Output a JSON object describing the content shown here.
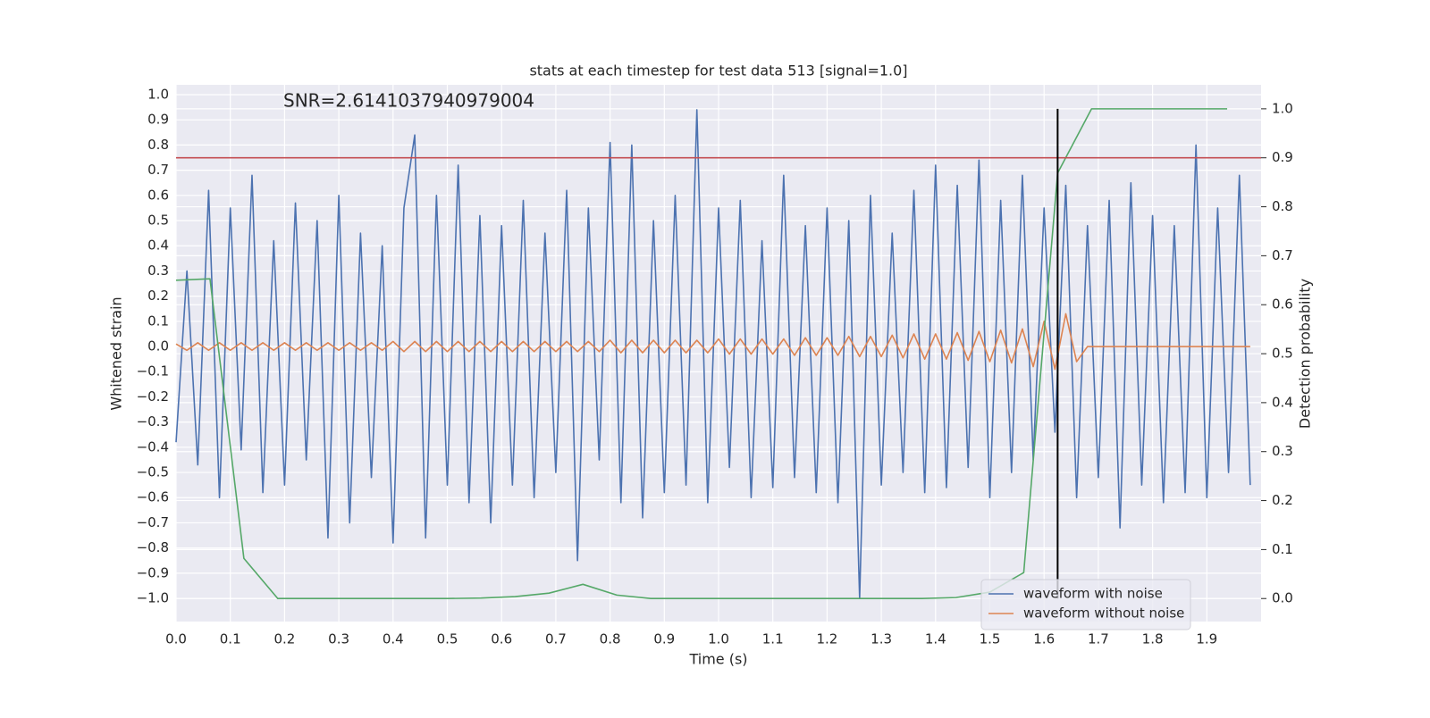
{
  "chart_data": {
    "type": "line",
    "title": "stats at each timestep for test data 513 [signal=1.0]",
    "annotation": "SNR=2.6141037940979004",
    "xlabel": "Time (s)",
    "ylabel": "Whitened strain",
    "y2label": "Detection probability",
    "xlim": [
      0,
      2.0
    ],
    "ylim": [
      -1.092,
      1.039
    ],
    "y2lim": [
      -0.047,
      1.049
    ],
    "grid": true,
    "legend": "lower right",
    "xticks": [
      {
        "value": 0,
        "label": "0.0"
      },
      {
        "value": 0.1,
        "label": "0.1"
      },
      {
        "value": 0.2,
        "label": "0.2"
      },
      {
        "value": 0.3,
        "label": "0.3"
      },
      {
        "value": 0.4,
        "label": "0.4"
      },
      {
        "value": 0.5,
        "label": "0.5"
      },
      {
        "value": 0.6,
        "label": "0.6"
      },
      {
        "value": 0.7,
        "label": "0.7"
      },
      {
        "value": 0.8,
        "label": "0.8"
      },
      {
        "value": 0.9,
        "label": "0.9"
      },
      {
        "value": 1,
        "label": "1.0"
      },
      {
        "value": 1.1,
        "label": "1.1"
      },
      {
        "value": 1.2,
        "label": "1.2"
      },
      {
        "value": 1.3,
        "label": "1.3"
      },
      {
        "value": 1.4,
        "label": "1.4"
      },
      {
        "value": 1.5,
        "label": "1.5"
      },
      {
        "value": 1.6,
        "label": "1.6"
      },
      {
        "value": 1.7,
        "label": "1.7"
      },
      {
        "value": 1.8,
        "label": "1.8"
      },
      {
        "value": 1.9,
        "label": "1.9"
      }
    ],
    "yticks": [
      {
        "value": -1,
        "label": "−1.0"
      },
      {
        "value": -0.9,
        "label": "−0.9"
      },
      {
        "value": -0.8,
        "label": "−0.8"
      },
      {
        "value": -0.7,
        "label": "−0.7"
      },
      {
        "value": -0.6,
        "label": "−0.6"
      },
      {
        "value": -0.5,
        "label": "−0.5"
      },
      {
        "value": -0.4,
        "label": "−0.4"
      },
      {
        "value": -0.3,
        "label": "−0.3"
      },
      {
        "value": -0.2,
        "label": "−0.2"
      },
      {
        "value": -0.1,
        "label": "−0.1"
      },
      {
        "value": 0,
        "label": "0.0"
      },
      {
        "value": 0.1,
        "label": "0.1"
      },
      {
        "value": 0.2,
        "label": "0.2"
      },
      {
        "value": 0.3,
        "label": "0.3"
      },
      {
        "value": 0.4,
        "label": "0.4"
      },
      {
        "value": 0.5,
        "label": "0.5"
      },
      {
        "value": 0.6,
        "label": "0.6"
      },
      {
        "value": 0.7,
        "label": "0.7"
      },
      {
        "value": 0.8,
        "label": "0.8"
      },
      {
        "value": 0.9,
        "label": "0.9"
      },
      {
        "value": 1,
        "label": "1.0"
      }
    ],
    "y2ticks": [
      {
        "value": 0,
        "label": "0.0"
      },
      {
        "value": 0.1,
        "label": "0.1"
      },
      {
        "value": 0.2,
        "label": "0.2"
      },
      {
        "value": 0.3,
        "label": "0.3"
      },
      {
        "value": 0.4,
        "label": "0.4"
      },
      {
        "value": 0.5,
        "label": "0.5"
      },
      {
        "value": 0.6,
        "label": "0.6"
      },
      {
        "value": 0.7,
        "label": "0.7"
      },
      {
        "value": 0.8,
        "label": "0.8"
      },
      {
        "value": 0.9,
        "label": "0.9"
      },
      {
        "value": 1,
        "label": "1.0"
      }
    ],
    "x": [
      0,
      0.02,
      0.04,
      0.06,
      0.08,
      0.1,
      0.12,
      0.14,
      0.16,
      0.18,
      0.2,
      0.22,
      0.24,
      0.26,
      0.28,
      0.3,
      0.32,
      0.34,
      0.36,
      0.38,
      0.4,
      0.42,
      0.44,
      0.46,
      0.48,
      0.5,
      0.52,
      0.54,
      0.56,
      0.58,
      0.6,
      0.62,
      0.64,
      0.66,
      0.68,
      0.7,
      0.72,
      0.74,
      0.76,
      0.78,
      0.8,
      0.82,
      0.84,
      0.86,
      0.88,
      0.9,
      0.92,
      0.94,
      0.96,
      0.98,
      1,
      1.02,
      1.04,
      1.06,
      1.08,
      1.1,
      1.12,
      1.14,
      1.16,
      1.18,
      1.2,
      1.22,
      1.24,
      1.26,
      1.28,
      1.3,
      1.32,
      1.34,
      1.36,
      1.38,
      1.4,
      1.42,
      1.44,
      1.46,
      1.48,
      1.5,
      1.52,
      1.54,
      1.56,
      1.58,
      1.6,
      1.62,
      1.64,
      1.66,
      1.68,
      1.7,
      1.72,
      1.74,
      1.76,
      1.78,
      1.8,
      1.82,
      1.84,
      1.86,
      1.88,
      1.9,
      1.92,
      1.94,
      1.96,
      1.98
    ],
    "series": [
      {
        "name": "waveform with noise",
        "color": "#4c72b0",
        "values": [
          -0.38,
          0.3,
          -0.47,
          0.62,
          -0.6,
          0.55,
          -0.41,
          0.68,
          -0.58,
          0.42,
          -0.55,
          0.57,
          -0.45,
          0.5,
          -0.76,
          0.6,
          -0.7,
          0.45,
          -0.52,
          0.4,
          -0.78,
          0.55,
          0.84,
          -0.76,
          0.6,
          -0.55,
          0.72,
          -0.62,
          0.52,
          -0.7,
          0.48,
          -0.55,
          0.58,
          -0.6,
          0.45,
          -0.5,
          0.62,
          -0.85,
          0.55,
          -0.45,
          0.81,
          -0.62,
          0.8,
          -0.68,
          0.5,
          -0.58,
          0.6,
          -0.55,
          0.94,
          -0.62,
          0.55,
          -0.48,
          0.58,
          -0.6,
          0.42,
          -0.56,
          0.68,
          -0.52,
          0.48,
          -0.58,
          0.55,
          -0.62,
          0.5,
          -1.0,
          0.6,
          -0.55,
          0.45,
          -0.5,
          0.62,
          -0.58,
          0.72,
          -0.56,
          0.64,
          -0.48,
          0.74,
          -0.6,
          0.58,
          -0.5,
          0.68,
          -0.45,
          0.55,
          -0.34,
          0.64,
          -0.6,
          0.48,
          -0.52,
          0.58,
          -0.72,
          0.65,
          -0.55,
          0.52,
          -0.62,
          0.48,
          -0.58,
          0.8,
          -0.6,
          0.55,
          -0.5,
          0.68,
          -0.55
        ]
      },
      {
        "name": "waveform without noise",
        "color": "#dd8452",
        "values": [
          0.01,
          -0.015,
          0.015,
          -0.015,
          0.015,
          -0.015,
          0.015,
          -0.015,
          0.015,
          -0.015,
          0.015,
          -0.015,
          0.015,
          -0.015,
          0.015,
          -0.015,
          0.015,
          -0.015,
          0.015,
          -0.015,
          0.02,
          -0.02,
          0.02,
          -0.02,
          0.02,
          -0.02,
          0.02,
          -0.02,
          0.02,
          -0.02,
          0.02,
          -0.02,
          0.02,
          -0.02,
          0.02,
          -0.02,
          0.02,
          -0.02,
          0.02,
          -0.02,
          0.025,
          -0.025,
          0.025,
          -0.025,
          0.025,
          -0.025,
          0.025,
          -0.025,
          0.025,
          -0.025,
          0.03,
          -0.03,
          0.03,
          -0.03,
          0.03,
          -0.03,
          0.03,
          -0.035,
          0.035,
          -0.035,
          0.035,
          -0.035,
          0.04,
          -0.04,
          0.04,
          -0.04,
          0.045,
          -0.045,
          0.05,
          -0.05,
          0.05,
          -0.05,
          0.055,
          -0.055,
          0.06,
          -0.06,
          0.065,
          -0.065,
          0.07,
          -0.08,
          0.1,
          -0.09,
          0.13,
          -0.06,
          0,
          0,
          0,
          0,
          0,
          0,
          0,
          0,
          0,
          0,
          0,
          0,
          0,
          0,
          0,
          0
        ]
      },
      {
        "color": "#55a868",
        "axis": "y2",
        "x": [
          0,
          0.0625,
          0.125,
          0.1875,
          0.25,
          0.3125,
          0.375,
          0.4375,
          0.5,
          0.5625,
          0.625,
          0.6875,
          0.75,
          0.8125,
          0.875,
          0.9375,
          1,
          1.0625,
          1.125,
          1.1875,
          1.25,
          1.3125,
          1.375,
          1.4375,
          1.5,
          1.5625,
          1.625,
          1.6875,
          1.75,
          1.8125,
          1.875,
          1.9375
        ],
        "values": [
          0.65,
          0.653,
          0.082,
          0,
          0,
          0,
          0,
          0,
          0,
          0.001,
          0.004,
          0.011,
          0.029,
          0.007,
          0,
          0,
          0,
          0,
          0,
          0,
          0,
          0,
          0,
          0.002,
          0.013,
          0.053,
          0.869,
          1,
          1,
          1,
          1,
          1
        ]
      }
    ],
    "hlines": [
      {
        "value": 0.9,
        "axis": "y2",
        "color": "#c44e52"
      }
    ],
    "vlines": [
      {
        "x": 1.625,
        "ymin": 0,
        "ymax": 1.0,
        "axis": "y2",
        "color": "#000000"
      }
    ]
  }
}
